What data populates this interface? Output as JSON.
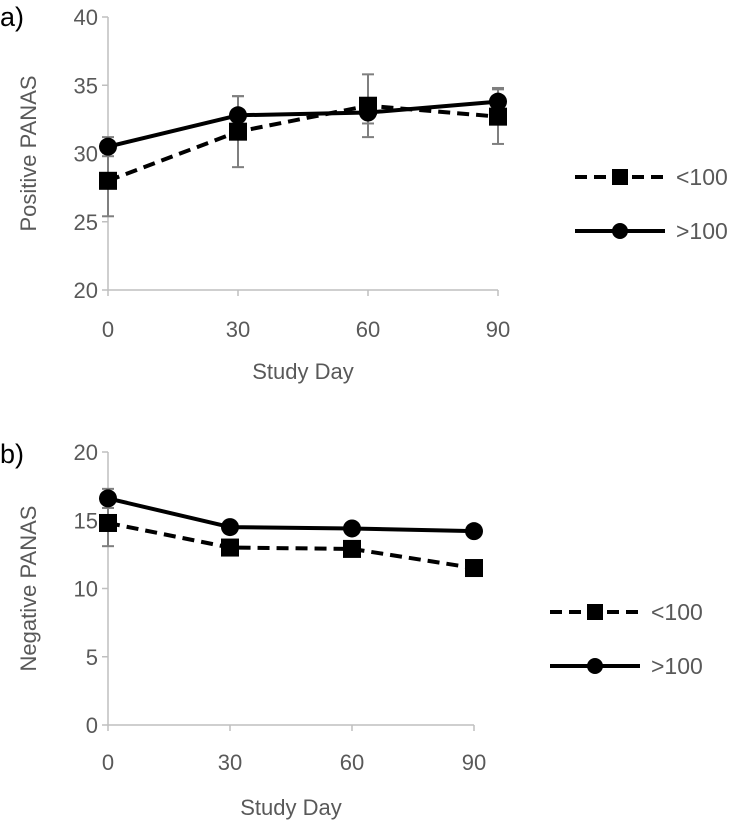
{
  "chart_data": [
    {
      "panel": "a)",
      "type": "line",
      "ylabel": "Positive PANAS",
      "xlabel": "Study Day",
      "x": [
        0,
        30,
        60,
        90
      ],
      "ylim": [
        20,
        40
      ],
      "yticks": [
        20,
        25,
        30,
        35,
        40
      ],
      "xticks": [
        0,
        30,
        60,
        90
      ],
      "grid": false,
      "legend": "right",
      "series": [
        {
          "name": "<100",
          "style": "dashed",
          "marker": "square",
          "values": [
            28.0,
            31.6,
            33.5,
            32.7
          ],
          "error": [
            2.6,
            2.6,
            2.3,
            2.0
          ]
        },
        {
          "name": ">100",
          "style": "solid",
          "marker": "circle",
          "values": [
            30.5,
            32.8,
            33.0,
            33.8
          ],
          "error": [
            0.7,
            1.4,
            0.8,
            1.0
          ]
        }
      ]
    },
    {
      "panel": "b)",
      "type": "line",
      "ylabel": "Negative PANAS",
      "xlabel": "Study Day",
      "x": [
        0,
        30,
        60,
        90
      ],
      "ylim": [
        0,
        20
      ],
      "yticks": [
        0,
        5,
        10,
        15,
        20
      ],
      "xticks": [
        0,
        30,
        60,
        90
      ],
      "grid": false,
      "legend": "right",
      "series": [
        {
          "name": "<100",
          "style": "dashed",
          "marker": "square",
          "values": [
            14.8,
            13.0,
            12.9,
            11.5
          ],
          "error": [
            1.7,
            0.5,
            0.4,
            0.3
          ]
        },
        {
          "name": ">100",
          "style": "solid",
          "marker": "circle",
          "values": [
            16.6,
            14.5,
            14.4,
            14.2
          ],
          "error": [
            0.7,
            0.3,
            0.3,
            0.3
          ]
        }
      ]
    }
  ],
  "colors": {
    "line": "#000000",
    "axis": "#bfbfbf",
    "error": "#7f7f7f",
    "text": "#595959"
  }
}
